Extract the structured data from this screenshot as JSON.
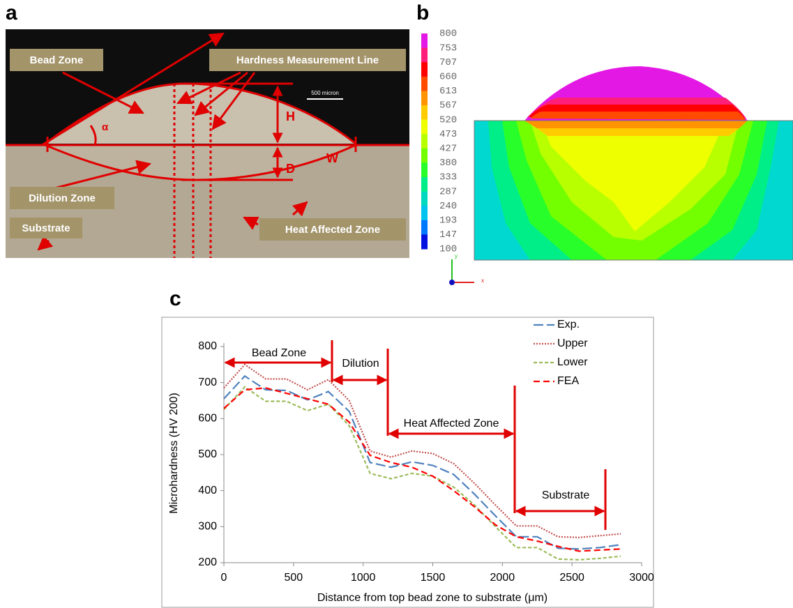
{
  "panel_labels": [
    "a",
    "b",
    "c"
  ],
  "panel_a": {
    "labels": [
      "Bead Zone",
      "Hardness Measurement Line",
      "Dilution Zone",
      "Substrate",
      "Heat Affected Zone"
    ],
    "dimensions": [
      "H",
      "D",
      "W",
      "α"
    ],
    "scale_bar": "500 micron"
  },
  "panel_b": {
    "colorbar_ticks": [
      800,
      753,
      707,
      660,
      613,
      567,
      520,
      473,
      427,
      380,
      333,
      287,
      240,
      193,
      147,
      100
    ],
    "colorbar_colors": [
      "#e418e4",
      "#ff1e78",
      "#ff0000",
      "#ff4a00",
      "#ff9400",
      "#ffcc00",
      "#eeff00",
      "#b8ff00",
      "#74ff00",
      "#28ff2a",
      "#00ee88",
      "#00d8c0",
      "#00c4f0",
      "#0078ff",
      "#0010e0"
    ],
    "axis_labels": [
      "y",
      "x"
    ]
  },
  "chart_data": {
    "type": "line",
    "x_label": "Distance from top bead zone to substrate (μm)",
    "y_label": "Microhardness (HV 200)",
    "x": [
      0,
      150,
      300,
      450,
      600,
      750,
      900,
      1050,
      1200,
      1350,
      1500,
      1650,
      1800,
      1950,
      2100,
      2250,
      2400,
      2550,
      2700,
      2850
    ],
    "series": [
      {
        "name": "Exp.",
        "color": "#4f81bd",
        "style": "long-dash",
        "values": [
          655,
          718,
          680,
          678,
          652,
          675,
          620,
          478,
          465,
          480,
          470,
          445,
          390,
          330,
          272,
          272,
          240,
          238,
          242,
          250
        ]
      },
      {
        "name": "Upper",
        "color": "#c0504d",
        "style": "dotted",
        "values": [
          685,
          750,
          710,
          710,
          680,
          708,
          650,
          510,
          493,
          510,
          503,
          475,
          420,
          360,
          302,
          302,
          272,
          270,
          275,
          280
        ]
      },
      {
        "name": "Lower",
        "color": "#9bbb59",
        "style": "short-dash",
        "values": [
          625,
          688,
          648,
          648,
          622,
          640,
          580,
          448,
          433,
          448,
          440,
          410,
          360,
          300,
          242,
          242,
          210,
          208,
          212,
          218
        ]
      },
      {
        "name": "FEA",
        "color": "#ff0000",
        "style": "dash",
        "values": [
          628,
          680,
          685,
          670,
          655,
          640,
          590,
          498,
          478,
          465,
          440,
          400,
          355,
          305,
          272,
          260,
          245,
          232,
          235,
          238
        ]
      }
    ],
    "annotations": [
      "Bead Zone",
      "Dilution",
      "Heat Affected Zone",
      "Substrate"
    ],
    "xlim": [
      0,
      3000
    ],
    "xticks": [
      0,
      500,
      1000,
      1500,
      2000,
      2500,
      3000
    ],
    "ylim": [
      200,
      800
    ],
    "yticks": [
      200,
      300,
      400,
      500,
      600,
      700,
      800
    ],
    "grid": false,
    "legend": "top-right"
  }
}
